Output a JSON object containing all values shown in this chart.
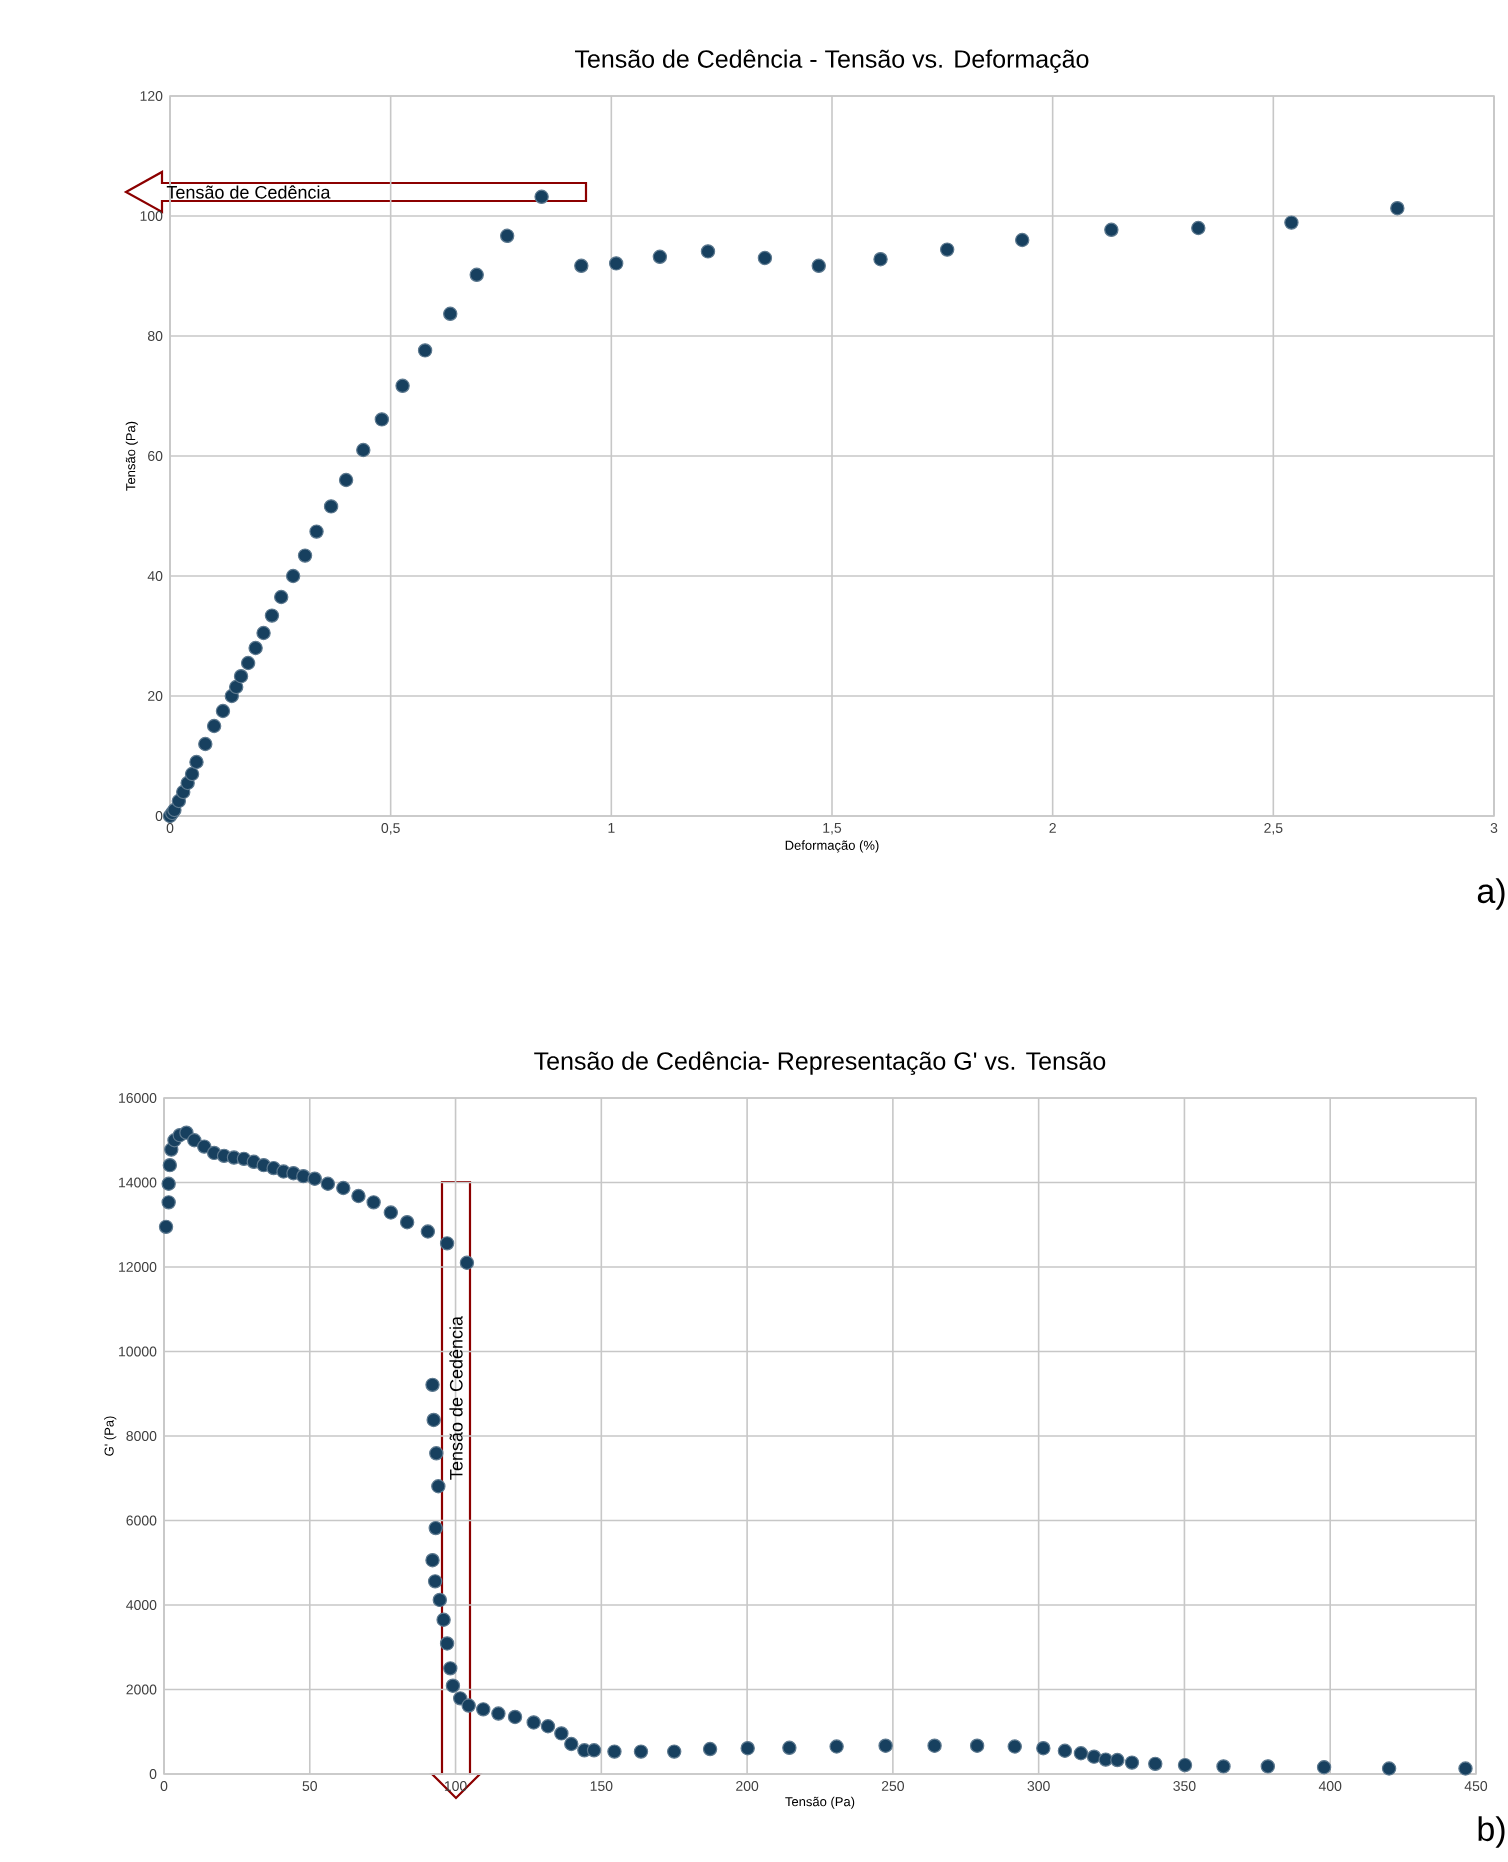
{
  "chart_data": [
    {
      "type": "scatter",
      "title": "Tensão de Cedência - Tensão vs. Deformação",
      "xlabel": "Deformação (%)",
      "ylabel": "Tensão (Pa)",
      "color": "#17405f",
      "marker": "circle",
      "grid": true,
      "xlim": [
        0,
        3
      ],
      "ylim": [
        0,
        120
      ],
      "xticks": [
        0,
        {
          "value": 0.5,
          "label": "0,5"
        },
        1,
        {
          "value": 1.5,
          "label": "1,5"
        },
        2,
        {
          "value": 2.5,
          "label": "2,5"
        },
        3
      ],
      "yticks": [
        0,
        20,
        40,
        60,
        80,
        100,
        120
      ],
      "x": [
        0,
        0.005,
        0.01,
        0.02,
        0.03,
        0.04,
        0.05,
        0.06,
        0.08,
        0.1,
        0.12,
        0.14,
        0.15,
        0.161,
        0.177,
        0.194,
        0.212,
        0.231,
        0.252,
        0.279,
        0.306,
        0.332,
        0.365,
        0.399,
        0.438,
        0.48,
        0.527,
        0.578,
        0.635,
        0.695,
        0.764,
        0.842,
        0.932,
        1.011,
        1.11,
        1.219,
        1.348,
        1.47,
        1.61,
        1.761,
        1.931,
        2.133,
        2.33,
        2.541,
        2.781
      ],
      "values": [
        0,
        0.5,
        1,
        2.5,
        4,
        5.5,
        7,
        9,
        12,
        15,
        17.5,
        20,
        21.5,
        23.3,
        25.5,
        28,
        30.5,
        33.4,
        36.5,
        40,
        43.4,
        47.4,
        51.6,
        56,
        61,
        66.1,
        71.7,
        77.6,
        83.7,
        90.2,
        96.7,
        103.2,
        91.7,
        92.1,
        93.2,
        94.1,
        93,
        91.7,
        92.8,
        94.4,
        96,
        97.7,
        98,
        98.9,
        101.3
      ],
      "annotations": [
        "Tensão de Cedência",
        "a)"
      ]
    },
    {
      "type": "scatter",
      "title": "Tensão de Cedência- Representação G' vs. Tensão",
      "xlabel": "Tensão (Pa)",
      "ylabel": "G' (Pa)",
      "color": "#17405f",
      "marker": "circle",
      "grid": true,
      "xlim": [
        0,
        450
      ],
      "ylim": [
        0,
        16000
      ],
      "xticks": [
        0,
        50,
        100,
        150,
        200,
        250,
        300,
        350,
        400,
        450
      ],
      "yticks": [
        0,
        2000,
        4000,
        6000,
        8000,
        10000,
        12000,
        14000,
        16000
      ],
      "x": [
        0.7,
        1.6,
        1.6,
        2,
        2.5,
        3.6,
        5.4,
        7.7,
        10.4,
        13.8,
        17.2,
        20.6,
        24,
        27.4,
        30.8,
        34.2,
        37.6,
        41,
        44.4,
        47.8,
        51.7,
        56.2,
        61.5,
        66.7,
        71.9,
        77.8,
        83.4,
        90.5,
        97.1,
        103.9,
        92.1,
        92.5,
        93.4,
        94.1,
        93.2,
        92.1,
        93,
        94.6,
        95.9,
        97.1,
        98.2,
        99.1,
        101.6,
        104.5,
        109.5,
        114.7,
        120.4,
        126.8,
        131.7,
        136.3,
        139.7,
        144.2,
        147.5,
        154.5,
        163.6,
        175,
        187.3,
        200.2,
        214.5,
        230.7,
        247.5,
        264.3,
        278.9,
        291.8,
        301.6,
        309,
        314.5,
        319,
        323,
        327,
        332,
        340,
        350.2,
        363.4,
        378.6,
        397.9,
        420.2,
        446.4
      ],
      "values": [
        12950,
        13530,
        13970,
        14410,
        14780,
        15000,
        15120,
        15180,
        15000,
        14850,
        14700,
        14630,
        14590,
        14560,
        14490,
        14410,
        14340,
        14260,
        14220,
        14150,
        14090,
        13970,
        13870,
        13680,
        13530,
        13290,
        13060,
        12840,
        12560,
        12100,
        9210,
        8380,
        7590,
        6810,
        5820,
        5060,
        4560,
        4120,
        3650,
        3090,
        2500,
        2090,
        1790,
        1620,
        1530,
        1430,
        1350,
        1220,
        1130,
        960,
        710,
        560,
        560,
        530,
        530,
        530,
        590,
        610,
        620,
        650,
        670,
        670,
        670,
        650,
        610,
        550,
        490,
        410,
        340,
        330,
        270,
        240,
        210,
        180,
        180,
        160,
        130,
        130
      ],
      "annotations": [
        "Tensão de Cedência",
        "b)"
      ]
    }
  ]
}
